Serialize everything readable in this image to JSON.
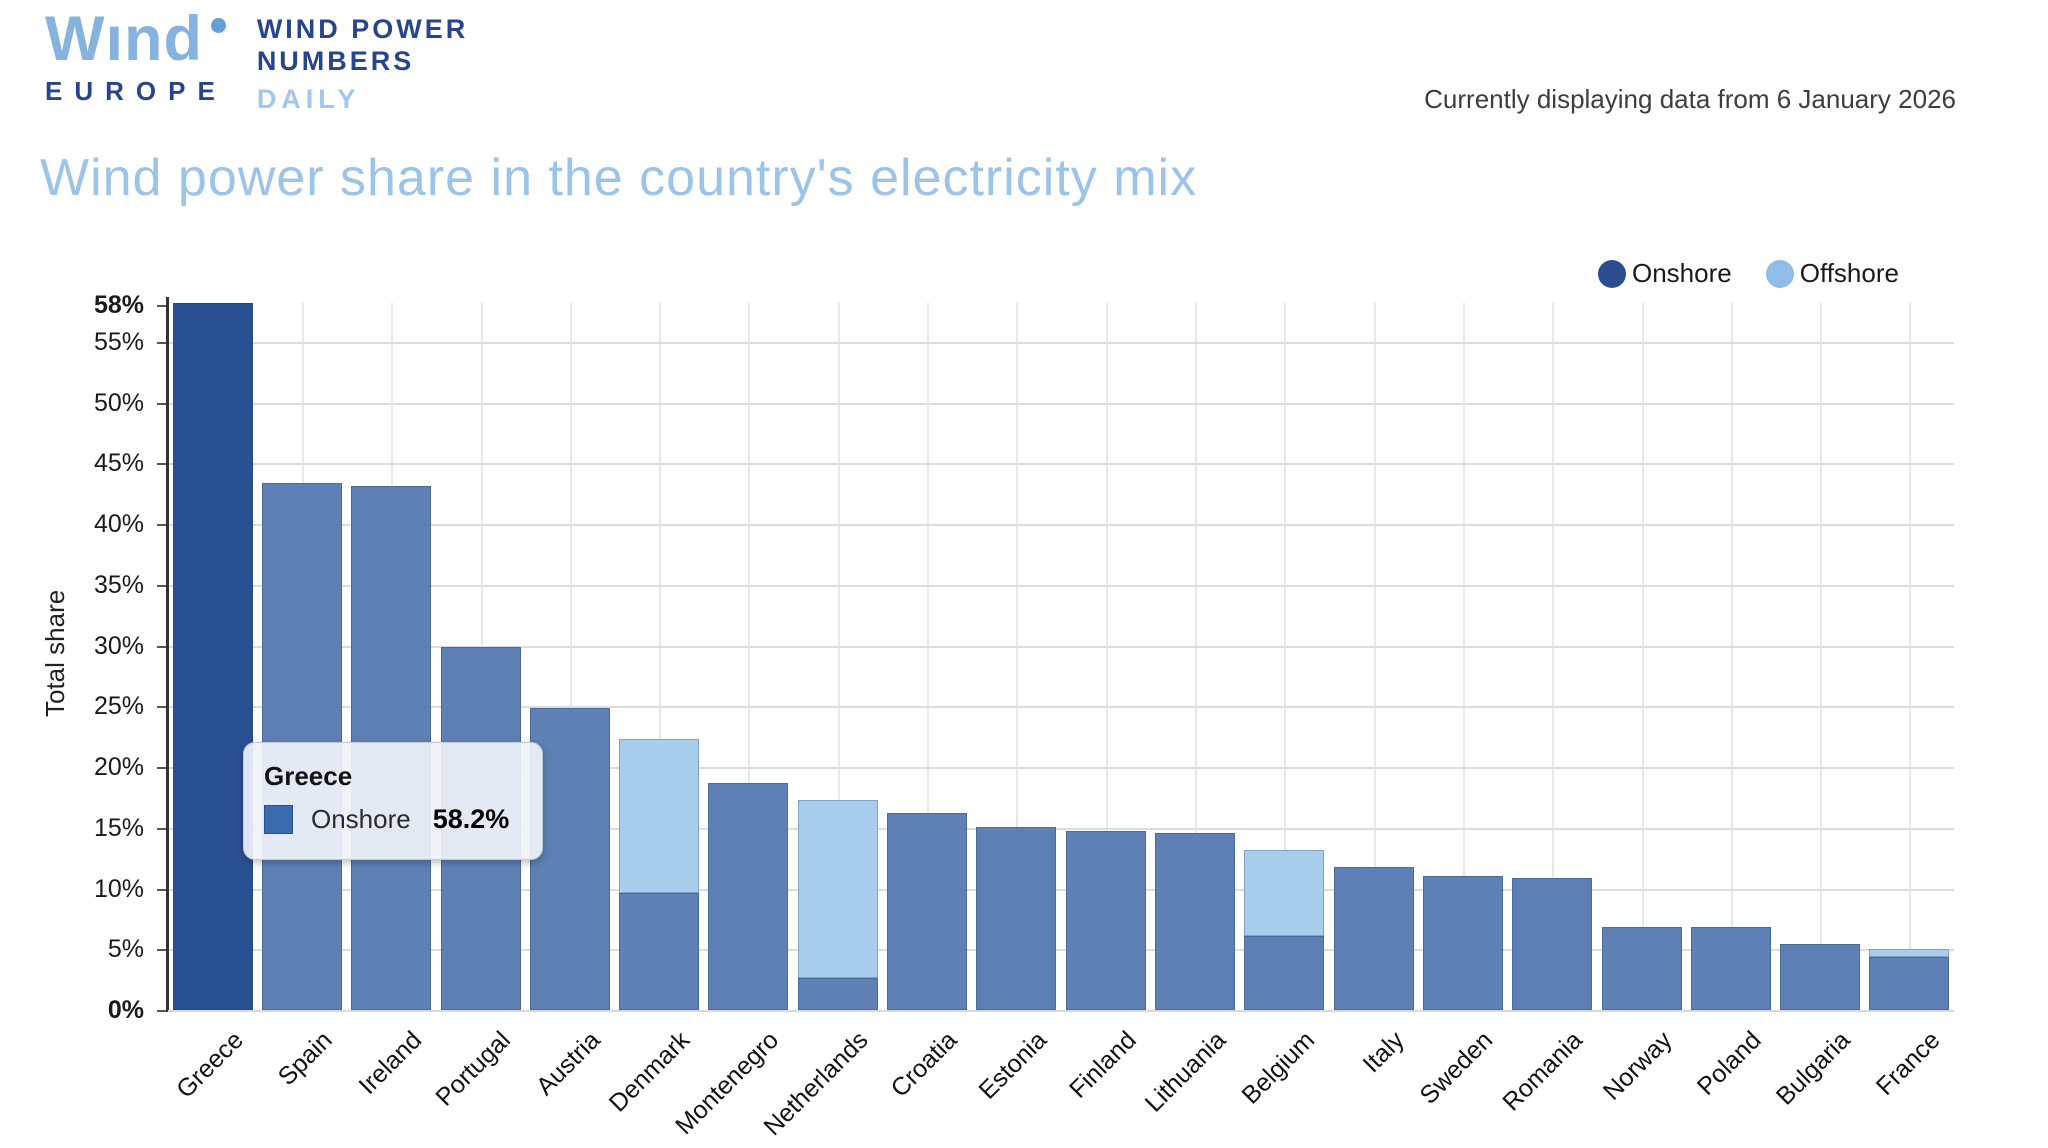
{
  "header": {
    "logo": {
      "brand": "Wınd",
      "brand_sub": "EUROPE",
      "product_line1": "WIND POWER",
      "product_line2": "NUMBERS",
      "product_line3": "DAILY"
    },
    "status": "Currently displaying data from 6 January 2026"
  },
  "title": "Wind power share in the country's electricity mix",
  "legend": [
    {
      "label": "Onshore",
      "color": "#2a4d8f"
    },
    {
      "label": "Offshore",
      "color": "#8fbce8"
    }
  ],
  "tooltip": {
    "title": "Greece",
    "series_label": "Onshore",
    "value": "58.2%",
    "swatch_color": "#3a6cad"
  },
  "chart_data": {
    "type": "bar",
    "stacked": true,
    "title": "Wind power share in the country's electricity mix",
    "xlabel": "",
    "ylabel": "Total share",
    "ylim": [
      0,
      58.2
    ],
    "yticks": [
      0,
      5,
      10,
      15,
      20,
      25,
      30,
      35,
      40,
      45,
      50,
      55,
      58
    ],
    "bold_yticks": [
      0,
      58
    ],
    "ytick_suffix": "%",
    "grid": true,
    "legend_position": "top-right",
    "highlighted_category": "Greece",
    "categories": [
      "Greece",
      "Spain",
      "Ireland",
      "Portugal",
      "Austria",
      "Denmark",
      "Montenegro",
      "Netherlands",
      "Croatia",
      "Estonia",
      "Finland",
      "Lithuania",
      "Belgium",
      "Italy",
      "Sweden",
      "Romania",
      "Norway",
      "Poland",
      "Bulgaria",
      "France"
    ],
    "series": [
      {
        "name": "Onshore",
        "values": [
          58.2,
          43.4,
          43.1,
          29.9,
          24.9,
          9.6,
          18.7,
          2.6,
          16.2,
          15.1,
          14.7,
          14.6,
          6.1,
          11.8,
          11.0,
          10.9,
          6.8,
          6.8,
          5.4,
          4.4
        ]
      },
      {
        "name": "Offshore",
        "values": [
          0,
          0,
          0,
          0,
          0,
          12.7,
          0,
          14.7,
          0,
          0,
          0,
          0,
          7.1,
          0,
          0,
          0,
          0,
          0,
          0,
          0.6
        ]
      }
    ],
    "colors": {
      "onshore": "#5e80b5",
      "onshore_highlight": "#2a5094",
      "offshore": "#a9cdec"
    }
  }
}
